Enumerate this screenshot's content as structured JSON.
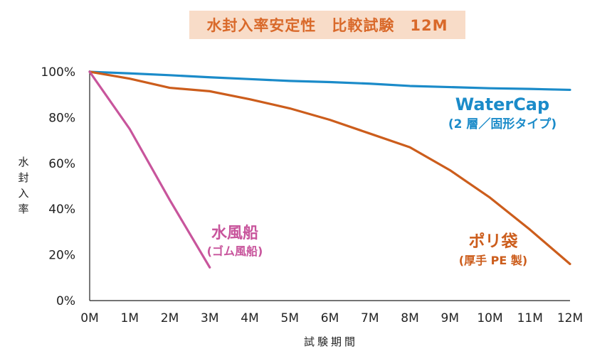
{
  "chart_data": {
    "type": "line",
    "title": "水封入率安定性　比較試験　12M",
    "xlabel": "試験期間",
    "ylabel": "水封入率",
    "categories": [
      "0M",
      "1M",
      "2M",
      "3M",
      "4M",
      "5M",
      "6M",
      "7M",
      "8M",
      "9M",
      "10M",
      "11M",
      "12M"
    ],
    "x": [
      0,
      1,
      2,
      3,
      4,
      5,
      6,
      7,
      8,
      9,
      10,
      11,
      12
    ],
    "yticks": [
      "0%",
      "20%",
      "40%",
      "60%",
      "80%",
      "100%"
    ],
    "ylim": [
      0,
      100
    ],
    "xlim": [
      0,
      12
    ],
    "grid": false,
    "series": [
      {
        "name": "WaterCap",
        "sublabel": "(2 層／固形タイプ)",
        "color": "#1b8bc9",
        "x": [
          0,
          1,
          2,
          3,
          4,
          5,
          6,
          7,
          8,
          9,
          10,
          11,
          12
        ],
        "values": [
          100,
          99.3,
          98.5,
          97.6,
          96.8,
          96,
          95.5,
          94.8,
          93.8,
          93.3,
          92.8,
          92.5,
          92.1
        ]
      },
      {
        "name": "ポリ袋",
        "sublabel": "(厚手 PE 製)",
        "color": "#cc5d1c",
        "x": [
          0,
          1,
          2,
          3,
          4,
          5,
          6,
          7,
          8,
          9,
          10,
          11,
          12
        ],
        "values": [
          100,
          97,
          93,
          91.5,
          88,
          84,
          79,
          73,
          67,
          57,
          45,
          31,
          16
        ]
      },
      {
        "name": "水風船",
        "sublabel": "(ゴム風船)",
        "color": "#c8559c",
        "x": [
          0,
          1,
          2,
          3
        ],
        "values": [
          100,
          75,
          44,
          14.5
        ]
      }
    ]
  }
}
